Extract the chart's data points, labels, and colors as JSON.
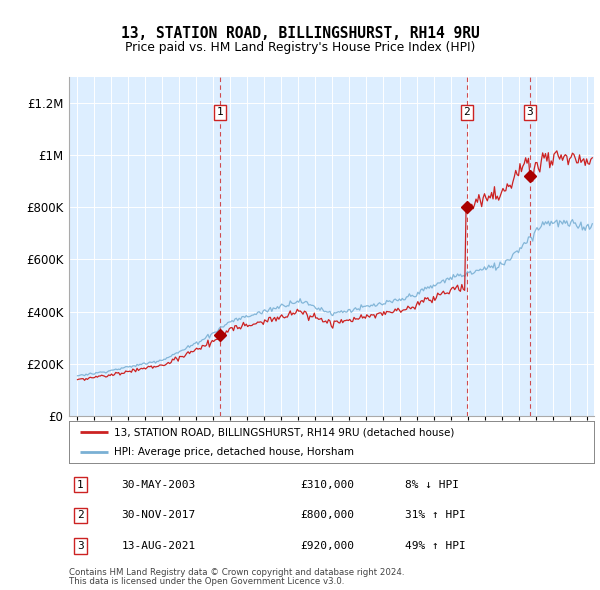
{
  "title": "13, STATION ROAD, BILLINGSHURST, RH14 9RU",
  "subtitle": "Price paid vs. HM Land Registry's House Price Index (HPI)",
  "ytick_values": [
    0,
    200000,
    400000,
    600000,
    800000,
    1000000,
    1200000
  ],
  "ylim": [
    0,
    1300000
  ],
  "xlim_start": 1994.5,
  "xlim_end": 2025.4,
  "hpi_color": "#7ab0d4",
  "price_color": "#cc2222",
  "sale_marker_color": "#aa0000",
  "background_color": "#ddeeff",
  "grid_color": "#ffffff",
  "legend_label_price": "13, STATION ROAD, BILLINGSHURST, RH14 9RU (detached house)",
  "legend_label_hpi": "HPI: Average price, detached house, Horsham",
  "transactions": [
    {
      "num": 1,
      "date_dec": 2003.4,
      "price": 310000,
      "label": "30-MAY-2003",
      "pct": "8% ↓ HPI"
    },
    {
      "num": 2,
      "date_dec": 2017.91,
      "price": 800000,
      "label": "30-NOV-2017",
      "pct": "31% ↑ HPI"
    },
    {
      "num": 3,
      "date_dec": 2021.62,
      "price": 920000,
      "label": "13-AUG-2021",
      "pct": "49% ↑ HPI"
    }
  ],
  "footer1": "Contains HM Land Registry data © Crown copyright and database right 2024.",
  "footer2": "This data is licensed under the Open Government Licence v3.0.",
  "xtick_years": [
    1995,
    1996,
    1997,
    1998,
    1999,
    2000,
    2001,
    2002,
    2003,
    2004,
    2005,
    2006,
    2007,
    2008,
    2009,
    2010,
    2011,
    2012,
    2013,
    2014,
    2015,
    2016,
    2017,
    2018,
    2019,
    2020,
    2021,
    2022,
    2023,
    2024,
    2025
  ]
}
